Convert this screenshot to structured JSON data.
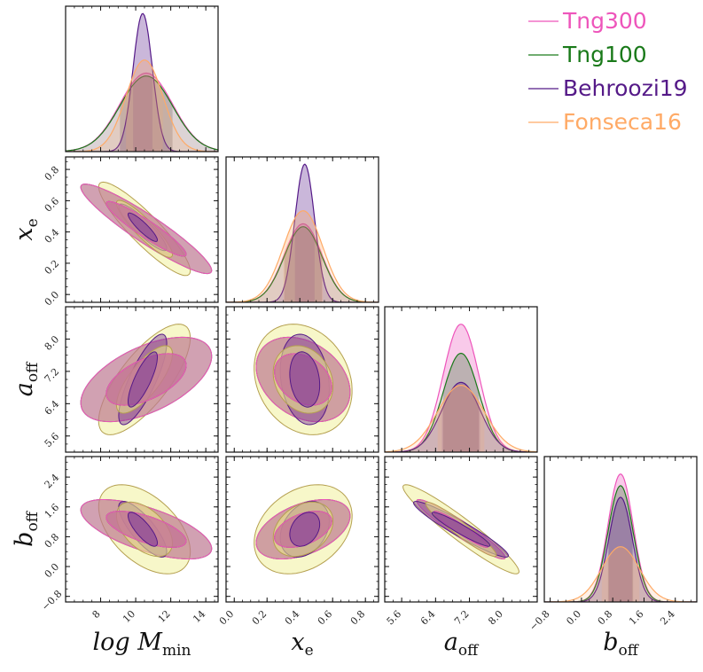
{
  "chart_data": {
    "type": "corner",
    "parameters": [
      {
        "id": "logM",
        "label": "log M",
        "sub": "min",
        "range": [
          6.0,
          14.7
        ],
        "ticks": [
          8,
          10,
          12,
          14
        ],
        "tick_labels": [
          "8",
          "10",
          "12",
          "14"
        ]
      },
      {
        "id": "xe",
        "label": "x",
        "sub": "e",
        "range": [
          -0.05,
          0.88
        ],
        "ticks": [
          0.0,
          0.2,
          0.4,
          0.6,
          0.8
        ],
        "tick_labels": [
          "0.0",
          "0.2",
          "0.4",
          "0.6",
          "0.8"
        ]
      },
      {
        "id": "aoff",
        "label": "a",
        "sub": "off",
        "range": [
          5.2,
          8.8
        ],
        "ticks": [
          5.6,
          6.4,
          7.2,
          8.0
        ],
        "tick_labels": [
          "5.6",
          "6.4",
          "7.2",
          "8.0"
        ]
      },
      {
        "id": "boff",
        "label": "b",
        "sub": "off",
        "range": [
          -0.95,
          2.95
        ],
        "ticks": [
          -0.8,
          0.0,
          0.8,
          1.6,
          2.4
        ],
        "tick_labels": [
          "−0.8",
          "0.0",
          "0.8",
          "1.6",
          "2.4"
        ]
      }
    ],
    "series": [
      {
        "name": "Tng300",
        "color": "#ee55bb",
        "fill": "#ee55bb",
        "mean": [
          10.6,
          0.42,
          7.0,
          1.0
        ],
        "sigma": [
          1.5,
          0.115,
          0.42,
          0.32
        ],
        "corr": [
          [
            1,
            -0.93,
            0.55,
            -0.65
          ],
          [
            -0.93,
            1,
            -0.3,
            0.45
          ],
          [
            0.55,
            -0.3,
            1,
            -0.95
          ],
          [
            -0.65,
            0.45,
            -0.95,
            1
          ]
        ],
        "peak": [
          0.54,
          0.54,
          0.88,
          0.88
        ]
      },
      {
        "name": "Tng100",
        "color": "#1a7a1a",
        "fill": "#66bb44",
        "mean": [
          10.6,
          0.42,
          7.0,
          1.0
        ],
        "sigma": [
          1.5,
          0.115,
          0.42,
          0.32
        ],
        "corr": [
          [
            1,
            -0.93,
            0.55,
            -0.65
          ],
          [
            -0.93,
            1,
            -0.3,
            0.45
          ],
          [
            0.55,
            -0.3,
            1,
            -0.95
          ],
          [
            -0.65,
            0.45,
            -0.95,
            1
          ]
        ],
        "peak": [
          0.52,
          0.52,
          0.68,
          0.8
        ]
      },
      {
        "name": "Behroozi19",
        "color": "#551a88",
        "fill": "#7a3a99",
        "mean": [
          10.4,
          0.43,
          7.0,
          1.0
        ],
        "sigma": [
          0.55,
          0.06,
          0.45,
          0.3
        ],
        "corr": [
          [
            1,
            -0.9,
            0.8,
            -0.8
          ],
          [
            -0.9,
            1,
            -0.2,
            0.3
          ],
          [
            0.8,
            -0.2,
            1,
            -0.95
          ],
          [
            -0.8,
            0.3,
            -0.95,
            1
          ]
        ],
        "peak": [
          0.95,
          0.95,
          0.48,
          0.72
        ]
      },
      {
        "name": "Fonseca16",
        "color": "#ffaa66",
        "fill": "#eeee88",
        "mean": [
          10.5,
          0.42,
          7.0,
          1.0
        ],
        "sigma": [
          1.05,
          0.12,
          0.55,
          0.48
        ],
        "corr": [
          [
            1,
            -0.9,
            0.75,
            -0.5
          ],
          [
            -0.9,
            1,
            -0.2,
            0.3
          ],
          [
            0.75,
            -0.2,
            1,
            -0.95
          ],
          [
            -0.5,
            0.3,
            -0.95,
            1
          ]
        ],
        "peak": [
          0.63,
          0.63,
          0.46,
          0.38
        ]
      }
    ],
    "legend": {
      "position": "top-right",
      "entries": [
        "Tng300",
        "Tng100",
        "Behroozi19",
        "Fonseca16"
      ]
    },
    "contour_levels_sigma": [
      1,
      2
    ]
  }
}
